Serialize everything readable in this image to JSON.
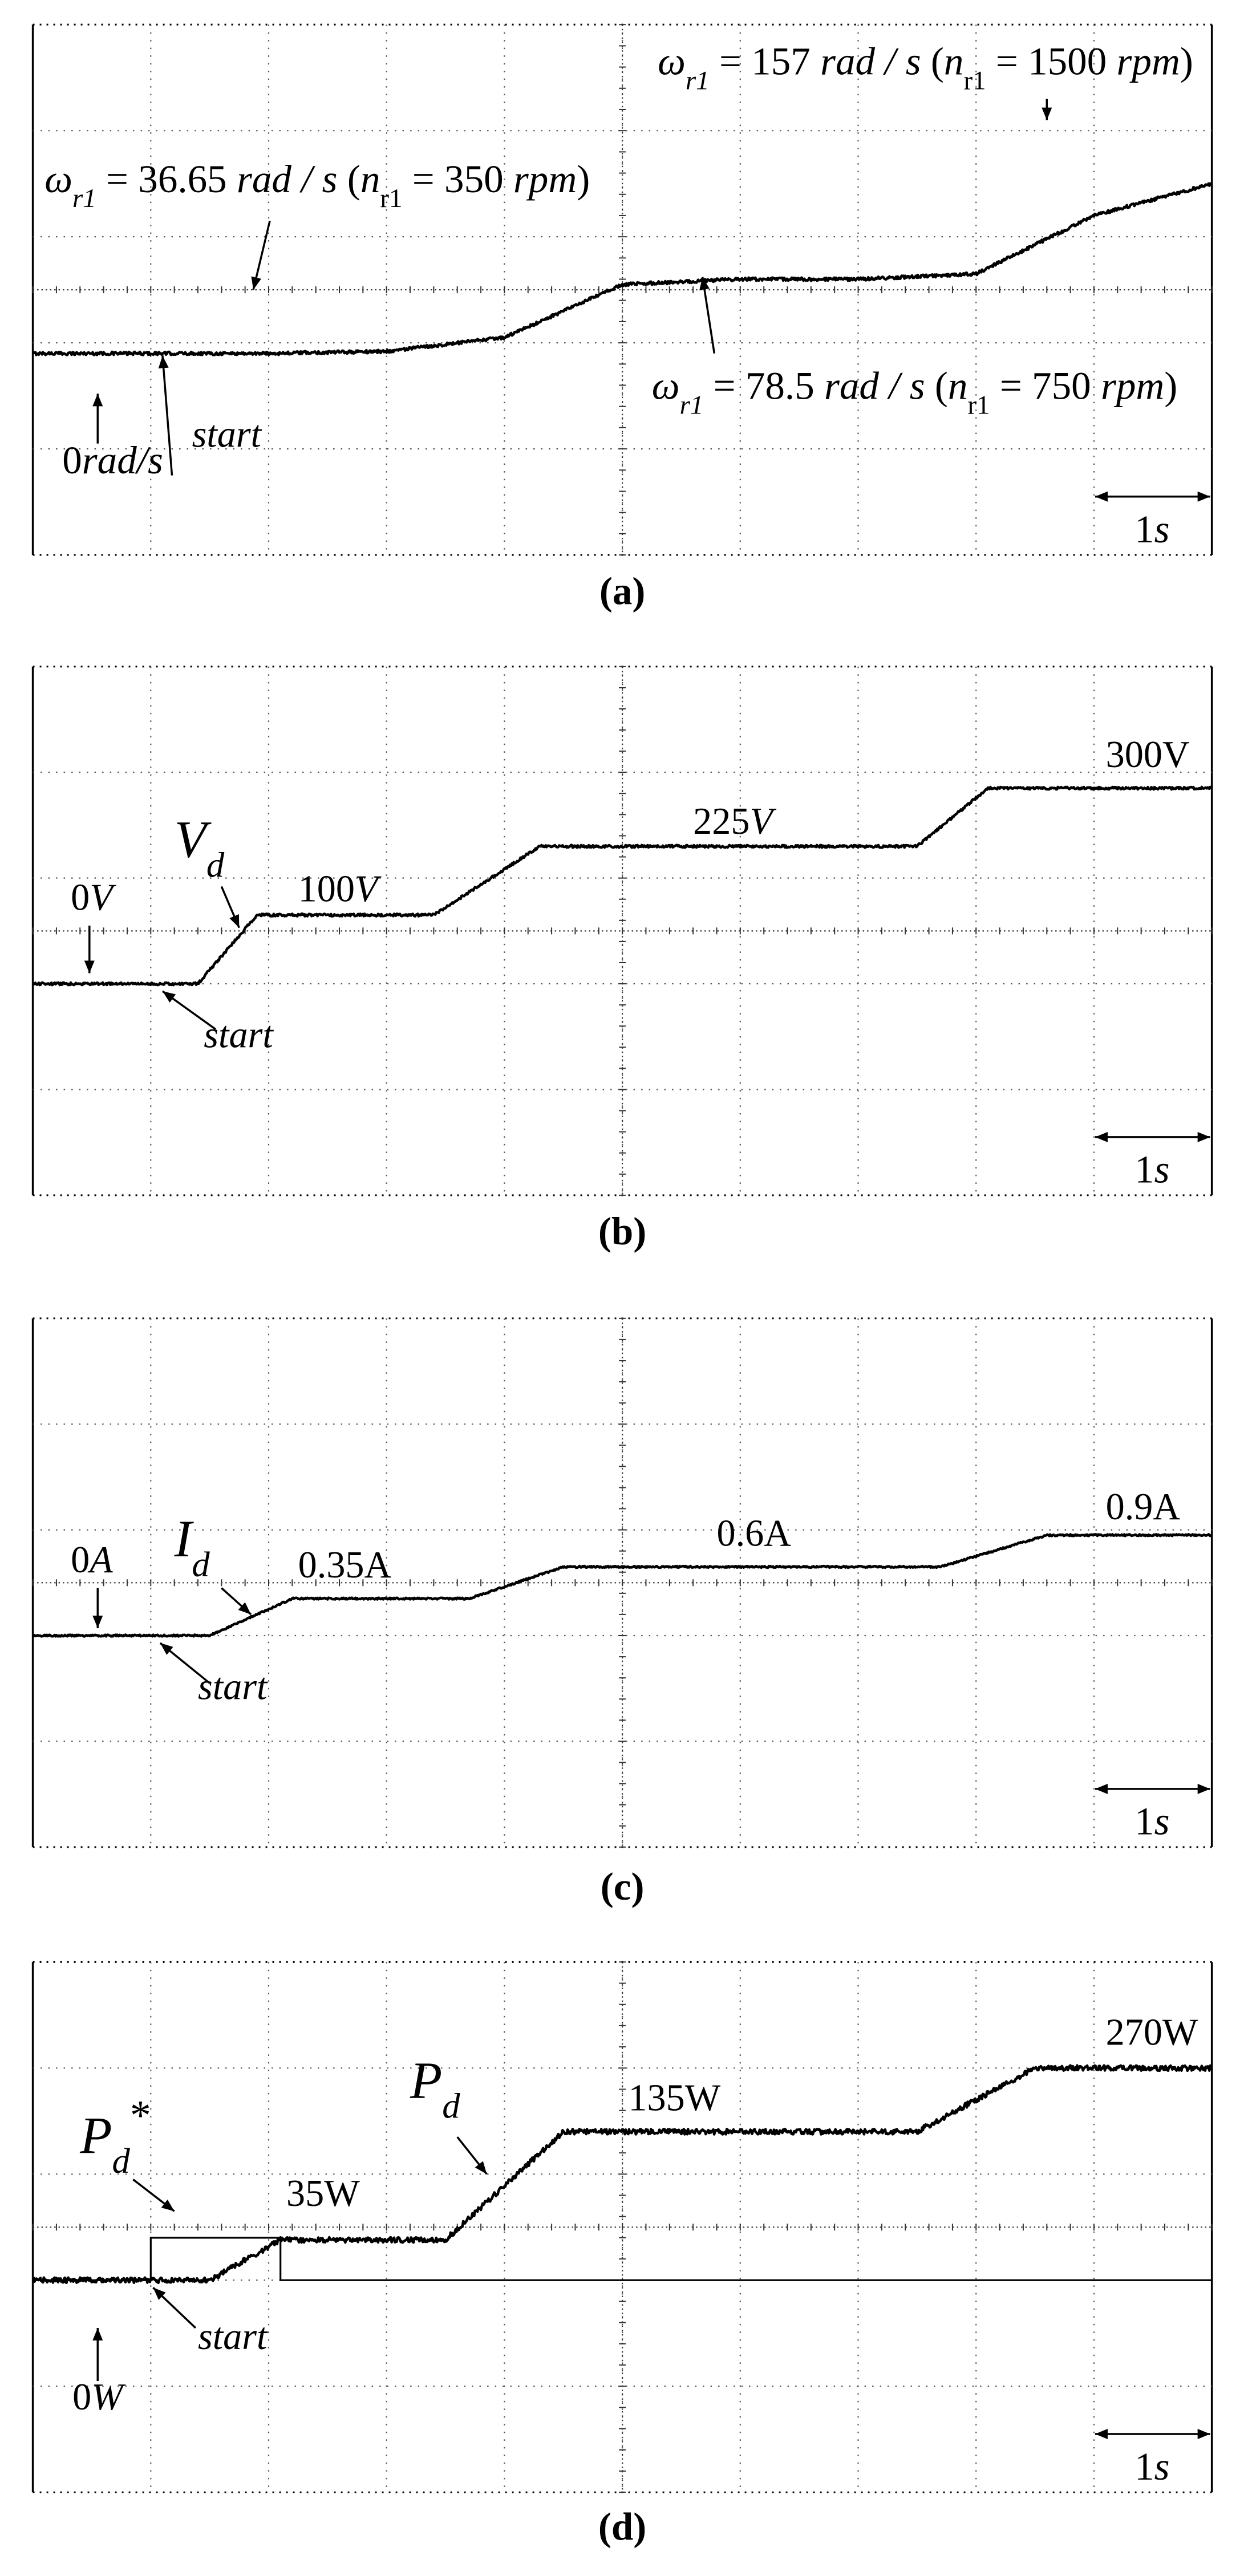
{
  "chart_data": [
    {
      "type": "line",
      "panel": "a",
      "caption": "(a)",
      "x_divisions": 10,
      "y_divisions": 5,
      "grid": true,
      "scale_bar_label": "1s",
      "scale_bar_divisions": 1,
      "series": [
        {
          "x": [
            0,
            1,
            2,
            3,
            4,
            5,
            6,
            7,
            8,
            9,
            10
          ],
          "y": [
            1.9,
            1.9,
            1.9,
            1.92,
            2.05,
            2.55,
            2.6,
            2.6,
            2.65,
            3.2,
            3.5
          ],
          "noise": 0.015
        }
      ],
      "annotations": [
        {
          "text": "ω_r1 = 157 rad/s (n_r1 = 1500 rpm)",
          "rich": [
            [
              "ω",
              "i"
            ],
            [
              "r1",
              "si"
            ],
            [
              " = 157 ",
              ""
            ],
            [
              "rad / s",
              "i"
            ],
            [
              " (",
              ""
            ],
            [
              "n",
              "i"
            ],
            [
              "r1",
              "s"
            ],
            [
              " = 1500 ",
              ""
            ],
            [
              "rpm",
              "i"
            ],
            [
              ")",
              ""
            ]
          ],
          "tx": 5.3,
          "ty": 4.53,
          "anchor": "start",
          "size": 24,
          "ax1": 8.6,
          "ay1": 4.3,
          "ax2": 8.6,
          "ay2": 4.1
        },
        {
          "text": "ω_r1 = 36.65 rad/s (n_r1 = 350 rpm)",
          "rich": [
            [
              "ω",
              "i"
            ],
            [
              "r1",
              "si"
            ],
            [
              " = 36.65 ",
              ""
            ],
            [
              "rad / s",
              "i"
            ],
            [
              " (",
              ""
            ],
            [
              "n",
              "i"
            ],
            [
              "r1",
              "s"
            ],
            [
              " = 350 ",
              ""
            ],
            [
              "rpm",
              "i"
            ],
            [
              ")",
              ""
            ]
          ],
          "tx": 0.1,
          "ty": 3.42,
          "anchor": "start",
          "size": 24,
          "ax1": 2.01,
          "ay1": 3.15,
          "ax2": 1.87,
          "ay2": 2.5
        },
        {
          "text": "ω_r1 = 78.5 rad/s (n_r1 = 750 rpm)",
          "rich": [
            [
              "ω",
              "i"
            ],
            [
              "r1",
              "si"
            ],
            [
              " = 78.5 ",
              ""
            ],
            [
              "rad / s",
              "i"
            ],
            [
              " (",
              ""
            ],
            [
              "n",
              "i"
            ],
            [
              "r1",
              "s"
            ],
            [
              " = 750 ",
              ""
            ],
            [
              "rpm",
              "i"
            ],
            [
              ")",
              ""
            ]
          ],
          "tx": 5.25,
          "ty": 1.47,
          "anchor": "start",
          "size": 24,
          "ax1": 5.78,
          "ay1": 1.9,
          "ax2": 5.68,
          "ay2": 2.62
        },
        {
          "text": "0rad/s",
          "rich": [
            [
              "0",
              ""
            ],
            [
              "rad/s",
              "i"
            ]
          ],
          "tx": 0.25,
          "ty": 0.77,
          "anchor": "start",
          "size": 24,
          "ax1": 0.55,
          "ay1": 1.05,
          "ax2": 0.55,
          "ay2": 1.52
        },
        {
          "text": "start",
          "rich": [
            [
              "start",
              "i"
            ]
          ],
          "tx": 1.35,
          "ty": 1.02,
          "anchor": "start",
          "size": 23,
          "ax1": 1.18,
          "ay1": 0.75,
          "ax2": 1.1,
          "ay2": 1.88
        }
      ]
    },
    {
      "type": "line",
      "panel": "b",
      "caption": "(b)",
      "x_divisions": 10,
      "y_divisions": 5,
      "grid": true,
      "scale_bar_label": "1s",
      "scale_bar_divisions": 1,
      "series": [
        {
          "x": [
            0,
            1.4,
            1.9,
            2.05,
            3.4,
            4.3,
            4.45,
            7.5,
            8.1,
            8.25,
            10
          ],
          "y": [
            2.0,
            2.0,
            2.65,
            2.65,
            2.65,
            3.3,
            3.3,
            3.3,
            3.85,
            3.85,
            3.85
          ],
          "noise": 0.012
        }
      ],
      "annotations": [
        {
          "text": "300V",
          "rich": [
            [
              "300V",
              ""
            ]
          ],
          "tx": 9.1,
          "ty": 4.05,
          "anchor": "start",
          "size": 23
        },
        {
          "text": "225V",
          "rich": [
            [
              "225",
              ""
            ],
            [
              "V",
              "i"
            ]
          ],
          "tx": 5.6,
          "ty": 3.42,
          "anchor": "start",
          "size": 23
        },
        {
          "text": "100V",
          "rich": [
            [
              "100",
              ""
            ],
            [
              "V",
              "i"
            ]
          ],
          "tx": 2.25,
          "ty": 2.78,
          "anchor": "start",
          "size": 23
        },
        {
          "text": "V_d",
          "rich": [
            [
              "V",
              "i"
            ],
            [
              "d",
              "si"
            ]
          ],
          "tx": 1.2,
          "ty": 3.2,
          "anchor": "start",
          "size": 32,
          "ax1": 1.6,
          "ay1": 2.92,
          "ax2": 1.75,
          "ay2": 2.53
        },
        {
          "text": "0V",
          "rich": [
            [
              "0",
              ""
            ],
            [
              "V",
              "i"
            ]
          ],
          "tx": 0.5,
          "ty": 2.7,
          "anchor": "middle",
          "size": 23,
          "ax1": 0.48,
          "ay1": 2.55,
          "ax2": 0.48,
          "ay2": 2.1
        },
        {
          "text": "start",
          "rich": [
            [
              "start",
              "i"
            ]
          ],
          "tx": 1.45,
          "ty": 1.4,
          "anchor": "start",
          "size": 23,
          "ax1": 1.55,
          "ay1": 1.57,
          "ax2": 1.1,
          "ay2": 1.93
        }
      ]
    },
    {
      "type": "line",
      "panel": "c",
      "caption": "(c)",
      "x_divisions": 10,
      "y_divisions": 5,
      "grid": true,
      "scale_bar_label": "1s",
      "scale_bar_divisions": 1,
      "series": [
        {
          "x": [
            0,
            1.5,
            2.2,
            2.35,
            3.7,
            4.5,
            4.65,
            7.7,
            8.6,
            8.75,
            10
          ],
          "y": [
            2.0,
            2.0,
            2.35,
            2.35,
            2.35,
            2.65,
            2.65,
            2.65,
            2.95,
            2.95,
            2.95
          ],
          "noise": 0.008
        }
      ],
      "annotations": [
        {
          "text": "0.9A",
          "rich": [
            [
              "0.9A",
              ""
            ]
          ],
          "tx": 9.1,
          "ty": 3.1,
          "anchor": "start",
          "size": 23
        },
        {
          "text": "0.6A",
          "rich": [
            [
              "0.6A",
              ""
            ]
          ],
          "tx": 5.8,
          "ty": 2.85,
          "anchor": "start",
          "size": 23
        },
        {
          "text": "0.35A",
          "rich": [
            [
              "0.35A",
              ""
            ]
          ],
          "tx": 2.25,
          "ty": 2.55,
          "anchor": "start",
          "size": 23
        },
        {
          "text": "I_d",
          "rich": [
            [
              "I",
              "i"
            ],
            [
              "d",
              "si"
            ]
          ],
          "tx": 1.2,
          "ty": 2.75,
          "anchor": "start",
          "size": 32,
          "ax1": 1.6,
          "ay1": 2.45,
          "ax2": 1.85,
          "ay2": 2.2
        },
        {
          "text": "0A",
          "rich": [
            [
              "0",
              ""
            ],
            [
              "A",
              "i"
            ]
          ],
          "tx": 0.5,
          "ty": 2.6,
          "anchor": "middle",
          "size": 23,
          "ax1": 0.55,
          "ay1": 2.45,
          "ax2": 0.55,
          "ay2": 2.07
        },
        {
          "text": "start",
          "rich": [
            [
              "start",
              "i"
            ]
          ],
          "tx": 1.4,
          "ty": 1.4,
          "anchor": "start",
          "size": 23,
          "ax1": 1.5,
          "ay1": 1.55,
          "ax2": 1.08,
          "ay2": 1.93
        }
      ]
    },
    {
      "type": "line",
      "panel": "d",
      "caption": "(d)",
      "x_divisions": 10,
      "y_divisions": 5,
      "grid": true,
      "scale_bar_label": "1s",
      "scale_bar_divisions": 1,
      "series": [
        {
          "x": [
            0,
            1.5,
            2.1,
            2.25,
            3.5,
            4.5,
            4.75,
            7.5,
            8.5,
            8.65,
            10
          ],
          "y": [
            2.0,
            2.0,
            2.38,
            2.38,
            2.38,
            3.4,
            3.4,
            3.4,
            4.0,
            4.0,
            4.0
          ],
          "noise": 0.025
        },
        {
          "x": [
            0,
            1.0,
            1.0,
            2.1,
            2.1,
            10
          ],
          "y": [
            2.0,
            2.0,
            2.4,
            2.4,
            2.0,
            2.0
          ],
          "noise": 0
        }
      ],
      "annotations": [
        {
          "text": "270W",
          "rich": [
            [
              "270W",
              ""
            ]
          ],
          "tx": 9.1,
          "ty": 4.22,
          "anchor": "start",
          "size": 23
        },
        {
          "text": "135W",
          "rich": [
            [
              "135W",
              ""
            ]
          ],
          "tx": 5.05,
          "ty": 3.6,
          "anchor": "start",
          "size": 23
        },
        {
          "text": "35W",
          "rich": [
            [
              "35W",
              ""
            ]
          ],
          "tx": 2.15,
          "ty": 2.7,
          "anchor": "start",
          "size": 23
        },
        {
          "text": "P_d",
          "rich": [
            [
              "P",
              "i"
            ],
            [
              "d",
              "si"
            ]
          ],
          "tx": 3.2,
          "ty": 3.72,
          "anchor": "start",
          "size": 32,
          "ax1": 3.6,
          "ay1": 3.35,
          "ax2": 3.85,
          "ay2": 3.0
        },
        {
          "text": "P_d*",
          "rich": [
            [
              "P",
              "i"
            ],
            [
              "d",
              "si"
            ],
            [
              "*",
              "u"
            ]
          ],
          "tx": 0.4,
          "ty": 3.2,
          "anchor": "start",
          "size": 32,
          "ax1": 0.85,
          "ay1": 2.95,
          "ax2": 1.2,
          "ay2": 2.65
        },
        {
          "text": "0W",
          "rich": [
            [
              "0",
              ""
            ],
            [
              "W",
              "i"
            ]
          ],
          "tx": 0.55,
          "ty": 0.78,
          "anchor": "middle",
          "size": 23,
          "ax1": 0.55,
          "ay1": 1.05,
          "ax2": 0.55,
          "ay2": 1.55
        },
        {
          "text": "start",
          "rich": [
            [
              "start",
              "i"
            ]
          ],
          "tx": 1.4,
          "ty": 1.35,
          "anchor": "start",
          "size": 23,
          "ax1": 1.38,
          "ay1": 1.55,
          "ax2": 1.02,
          "ay2": 1.93
        }
      ]
    }
  ]
}
